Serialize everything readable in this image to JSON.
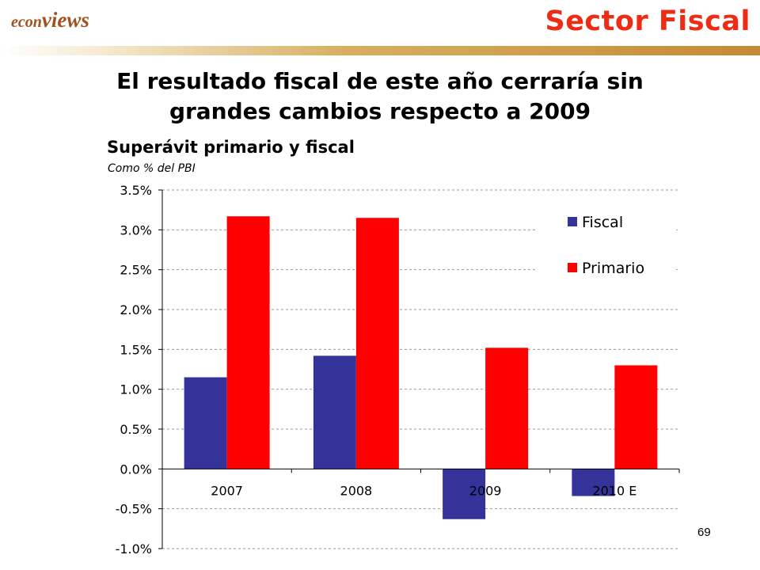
{
  "header": {
    "logo_part1": "econ",
    "logo_part2": "views",
    "section_title": "Sector Fiscal"
  },
  "slide": {
    "title_line1": "El resultado fiscal de este año cerraría sin",
    "title_line2": "grandes cambios respecto a 2009",
    "page_number": "69"
  },
  "colors": {
    "fiscal": "#333399",
    "primario": "#ff0000",
    "section_title": "#ee2b15",
    "logo": "#a0521e"
  },
  "chart_data": {
    "type": "bar",
    "title": "Superávit primario y fiscal",
    "subtitle": "Como % del PBI",
    "categories": [
      "2007",
      "2008",
      "2009",
      "2010 E"
    ],
    "series": [
      {
        "name": "Fiscal",
        "values": [
          1.15,
          1.42,
          -0.63,
          -0.34
        ]
      },
      {
        "name": "Primario",
        "values": [
          3.17,
          3.15,
          1.52,
          1.3
        ]
      }
    ],
    "ylim": [
      -1.0,
      3.5
    ],
    "yticks": [
      -1.0,
      -0.5,
      0.0,
      0.5,
      1.0,
      1.5,
      2.0,
      2.5,
      3.0,
      3.5
    ],
    "ytick_labels": [
      "-1.0%",
      "-0.5%",
      "0.0%",
      "0.5%",
      "1.0%",
      "1.5%",
      "2.0%",
      "2.5%",
      "3.0%",
      "3.5%"
    ],
    "grid": true,
    "legend_position": "top-right"
  }
}
